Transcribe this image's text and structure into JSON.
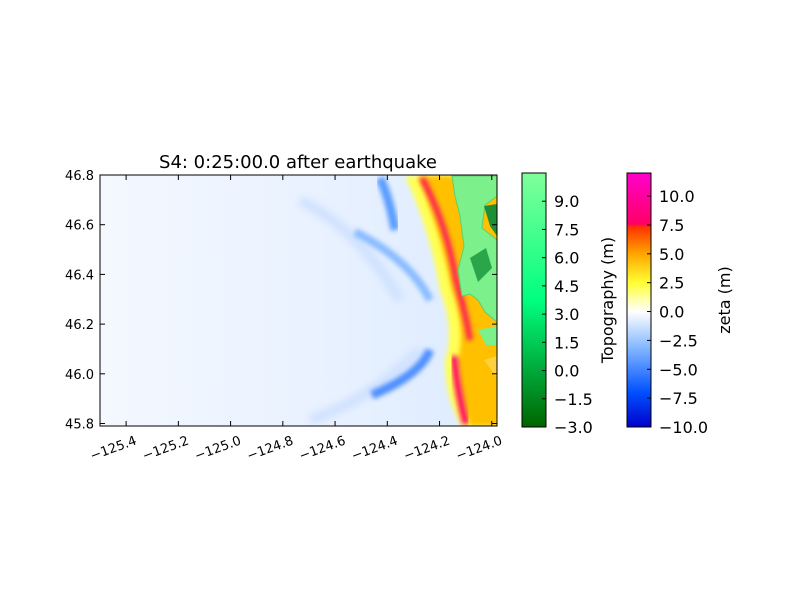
{
  "chart_data": {
    "type": "heatmap",
    "title": "S4: 0:25:00.0 after earthquake",
    "xlabel": "",
    "ylabel": "",
    "xlim": [
      -125.5,
      -123.98
    ],
    "ylim": [
      45.79,
      46.8
    ],
    "x_ticks": [
      {
        "value": -125.4,
        "label": "−125.4"
      },
      {
        "value": -125.2,
        "label": "−125.2"
      },
      {
        "value": -125.0,
        "label": "−125.0"
      },
      {
        "value": -124.8,
        "label": "−124.8"
      },
      {
        "value": -124.6,
        "label": "−124.6"
      },
      {
        "value": -124.4,
        "label": "−124.4"
      },
      {
        "value": -124.2,
        "label": "−124.2"
      },
      {
        "value": -124.0,
        "label": "−124.0"
      }
    ],
    "y_ticks": [
      {
        "value": 45.8,
        "label": "45.8"
      },
      {
        "value": 46.0,
        "label": "46.0"
      },
      {
        "value": 46.2,
        "label": "46.2"
      },
      {
        "value": 46.4,
        "label": "46.4"
      },
      {
        "value": 46.6,
        "label": "46.6"
      },
      {
        "value": 46.8,
        "label": "46.8"
      }
    ],
    "colorbars": [
      {
        "label": "Topography (m)",
        "range": [
          -3.0,
          10.5
        ],
        "colors": [
          "#006400",
          "#00ff80",
          "#80ff9a"
        ],
        "ticks": [
          {
            "value": -3.0,
            "label": "−3.0"
          },
          {
            "value": -1.5,
            "label": "−1.5"
          },
          {
            "value": 0.0,
            "label": "0.0"
          },
          {
            "value": 1.5,
            "label": "1.5"
          },
          {
            "value": 3.0,
            "label": "3.0"
          },
          {
            "value": 4.5,
            "label": "4.5"
          },
          {
            "value": 6.0,
            "label": "6.0"
          },
          {
            "value": 7.5,
            "label": "7.5"
          },
          {
            "value": 9.0,
            "label": "9.0"
          }
        ]
      },
      {
        "label": "zeta (m)",
        "range": [
          -10.0,
          12.0
        ],
        "stops": [
          {
            "value": -10.0,
            "color": "#0000cc"
          },
          {
            "value": -7.0,
            "color": "#0050ff"
          },
          {
            "value": -3.0,
            "color": "#88bbff"
          },
          {
            "value": 0.0,
            "color": "#ffffff"
          },
          {
            "value": 2.5,
            "color": "#ffff33"
          },
          {
            "value": 5.0,
            "color": "#ffa500"
          },
          {
            "value": 7.3,
            "color": "#ff3300"
          },
          {
            "value": 7.6,
            "color": "#ff0066"
          },
          {
            "value": 12.0,
            "color": "#ff00cc"
          }
        ],
        "ticks": [
          {
            "value": -10.0,
            "label": "−10.0"
          },
          {
            "value": -7.5,
            "label": "−7.5"
          },
          {
            "value": -5.0,
            "label": "−5.0"
          },
          {
            "value": -2.5,
            "label": "−2.5"
          },
          {
            "value": 0.0,
            "label": "0.0"
          },
          {
            "value": 2.5,
            "label": "2.5"
          },
          {
            "value": 5.0,
            "label": "5.0"
          },
          {
            "value": 7.5,
            "label": "7.5"
          },
          {
            "value": 10.0,
            "label": "10.0"
          }
        ]
      }
    ],
    "field_features": [
      {
        "name": "positive-wave-front",
        "value": 8.5,
        "path": [
          [
            -124.12,
            46.8
          ],
          [
            -124.15,
            46.6
          ],
          [
            -124.14,
            46.4
          ],
          [
            -124.08,
            46.2
          ],
          [
            -124.11,
            46.0
          ],
          [
            -124.06,
            45.8
          ]
        ]
      },
      {
        "name": "trough-north",
        "value": -6.0,
        "path": [
          [
            -124.38,
            46.8
          ],
          [
            -124.35,
            46.7
          ]
        ]
      },
      {
        "name": "trough-central-arc",
        "value": -5.0,
        "path": [
          [
            -124.55,
            46.58
          ],
          [
            -124.4,
            46.45
          ],
          [
            -124.3,
            46.35
          ]
        ]
      },
      {
        "name": "trough-south-arc",
        "value": -6.0,
        "path": [
          [
            -124.45,
            46.05
          ],
          [
            -124.3,
            45.98
          ],
          [
            -124.24,
            45.88
          ]
        ]
      },
      {
        "name": "land-region",
        "value": 8.0,
        "path": [
          [
            -124.1,
            46.8
          ],
          [
            -123.98,
            46.8
          ],
          [
            -123.98,
            46.2
          ]
        ]
      }
    ]
  }
}
